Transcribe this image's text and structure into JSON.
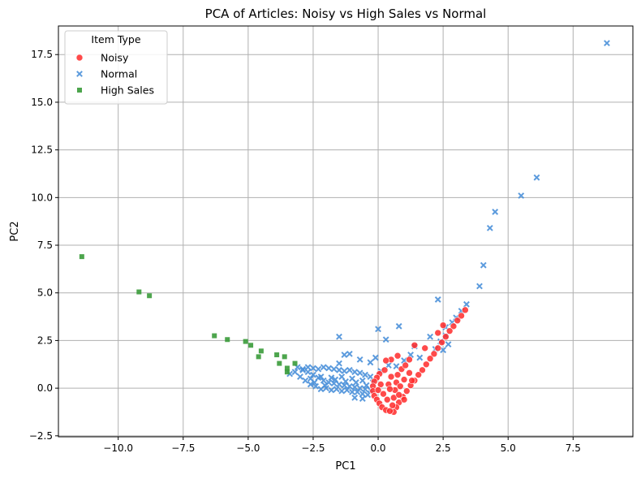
{
  "chart_data": {
    "type": "scatter",
    "title": "PCA of Articles: Noisy vs High Sales vs Normal",
    "xlabel": "PC1",
    "ylabel": "PC2",
    "xlim": [
      -12.3,
      9.8
    ],
    "ylim": [
      -2.55,
      19.0
    ],
    "xticks": [
      -10.0,
      -7.5,
      -5.0,
      -2.5,
      0.0,
      2.5,
      5.0,
      7.5
    ],
    "xtick_labels": [
      "−10.0",
      "−7.5",
      "−5.0",
      "−2.5",
      "0.0",
      "2.5",
      "5.0",
      "7.5"
    ],
    "yticks": [
      -2.5,
      0.0,
      2.5,
      5.0,
      7.5,
      10.0,
      12.5,
      15.0,
      17.5
    ],
    "ytick_labels": [
      "−2.5",
      "0.0",
      "2.5",
      "5.0",
      "7.5",
      "10.0",
      "12.5",
      "15.0",
      "17.5"
    ],
    "grid": true,
    "legend": {
      "title": "Item Type",
      "position": "top-left"
    },
    "series": [
      {
        "name": "Noisy",
        "marker": "circle",
        "color": "#ff2a2a",
        "points": [
          [
            3.35,
            4.1
          ],
          [
            3.2,
            3.8
          ],
          [
            3.05,
            3.55
          ],
          [
            2.9,
            3.25
          ],
          [
            2.75,
            3.0
          ],
          [
            2.6,
            2.7
          ],
          [
            2.45,
            2.4
          ],
          [
            2.3,
            2.1
          ],
          [
            2.15,
            1.8
          ],
          [
            2.0,
            1.55
          ],
          [
            1.85,
            1.25
          ],
          [
            1.7,
            0.95
          ],
          [
            1.55,
            0.7
          ],
          [
            1.4,
            0.4
          ],
          [
            1.25,
            0.15
          ],
          [
            1.1,
            -0.15
          ],
          [
            0.95,
            -0.45
          ],
          [
            0.8,
            -0.75
          ],
          [
            0.7,
            -1.0
          ],
          [
            0.6,
            -1.25
          ],
          [
            2.5,
            3.3
          ],
          [
            2.3,
            2.9
          ],
          [
            1.8,
            2.1
          ],
          [
            1.4,
            2.25
          ],
          [
            1.2,
            1.5
          ],
          [
            0.75,
            1.7
          ],
          [
            0.5,
            1.5
          ],
          [
            0.3,
            1.45
          ],
          [
            0.05,
            0.75
          ],
          [
            -0.05,
            0.55
          ],
          [
            -0.15,
            0.35
          ],
          [
            -0.2,
            0.1
          ],
          [
            -0.2,
            -0.15
          ],
          [
            -0.15,
            -0.4
          ],
          [
            -0.05,
            -0.6
          ],
          [
            0.05,
            -0.8
          ],
          [
            0.15,
            -1.0
          ],
          [
            0.3,
            -1.15
          ],
          [
            0.45,
            -1.2
          ],
          [
            0.55,
            -0.9
          ],
          [
            0.6,
            -0.5
          ],
          [
            0.65,
            -0.1
          ],
          [
            0.7,
            0.3
          ],
          [
            0.75,
            0.7
          ],
          [
            0.9,
            1.0
          ],
          [
            1.05,
            1.2
          ],
          [
            1.2,
            0.8
          ],
          [
            1.3,
            0.4
          ],
          [
            0.4,
            0.2
          ],
          [
            0.2,
            -0.3
          ],
          [
            0.35,
            -0.6
          ],
          [
            0.5,
            0.6
          ],
          [
            0.25,
            0.95
          ],
          [
            0.45,
            -0.05
          ],
          [
            1.0,
            0.45
          ],
          [
            0.85,
            0.1
          ],
          [
            0.1,
            0.2
          ],
          [
            0.0,
            -0.1
          ],
          [
            0.8,
            -0.35
          ],
          [
            1.0,
            -0.6
          ]
        ]
      },
      {
        "name": "Normal",
        "marker": "x",
        "color": "#4a90d9",
        "points": [
          [
            8.8,
            18.1
          ],
          [
            6.1,
            11.05
          ],
          [
            5.5,
            10.1
          ],
          [
            4.5,
            9.25
          ],
          [
            4.3,
            8.4
          ],
          [
            4.05,
            6.45
          ],
          [
            3.9,
            5.35
          ],
          [
            2.3,
            4.65
          ],
          [
            3.4,
            4.4
          ],
          [
            3.2,
            4.05
          ],
          [
            3.0,
            3.7
          ],
          [
            2.85,
            3.45
          ],
          [
            2.6,
            3.2
          ],
          [
            0.8,
            3.25
          ],
          [
            0.0,
            3.1
          ],
          [
            0.3,
            2.55
          ],
          [
            -1.5,
            2.7
          ],
          [
            1.4,
            2.2
          ],
          [
            2.0,
            2.7
          ],
          [
            2.6,
            2.75
          ],
          [
            2.4,
            2.45
          ],
          [
            2.2,
            2.05
          ],
          [
            -1.3,
            1.75
          ],
          [
            -1.1,
            1.8
          ],
          [
            -0.7,
            1.5
          ],
          [
            -0.3,
            1.35
          ],
          [
            -0.1,
            1.6
          ],
          [
            -3.1,
            1.1
          ],
          [
            -2.9,
            1.0
          ],
          [
            -2.7,
            0.85
          ],
          [
            -2.5,
            0.7
          ],
          [
            -2.3,
            0.55
          ],
          [
            -2.1,
            0.4
          ],
          [
            -1.9,
            0.3
          ],
          [
            -1.7,
            0.25
          ],
          [
            -1.5,
            0.2
          ],
          [
            -1.3,
            0.15
          ],
          [
            -1.1,
            0.1
          ],
          [
            -0.9,
            0.05
          ],
          [
            -0.7,
            0.0
          ],
          [
            -0.5,
            -0.05
          ],
          [
            -0.3,
            -0.1
          ],
          [
            -3.0,
            0.6
          ],
          [
            -2.8,
            0.4
          ],
          [
            -2.6,
            0.2
          ],
          [
            -2.4,
            0.1
          ],
          [
            -2.2,
            -0.05
          ],
          [
            -2.0,
            0.0
          ],
          [
            -1.8,
            -0.1
          ],
          [
            -1.6,
            -0.05
          ],
          [
            -1.4,
            -0.15
          ],
          [
            -1.2,
            -0.1
          ],
          [
            -1.0,
            -0.2
          ],
          [
            -0.8,
            -0.2
          ],
          [
            -0.6,
            -0.3
          ],
          [
            -0.4,
            -0.35
          ],
          [
            -2.9,
            0.95
          ],
          [
            -2.7,
            1.1
          ],
          [
            -2.5,
            1.05
          ],
          [
            -2.3,
            1.0
          ],
          [
            -2.1,
            1.1
          ],
          [
            -1.9,
            1.05
          ],
          [
            -1.7,
            1.0
          ],
          [
            -1.5,
            0.95
          ],
          [
            -1.3,
            0.9
          ],
          [
            -1.1,
            0.95
          ],
          [
            -0.9,
            0.85
          ],
          [
            -0.7,
            0.8
          ],
          [
            -0.5,
            0.7
          ],
          [
            -0.3,
            0.6
          ],
          [
            -3.4,
            0.75
          ],
          [
            -3.2,
            0.85
          ],
          [
            -2.6,
            0.5
          ],
          [
            -2.2,
            0.6
          ],
          [
            -1.8,
            0.55
          ],
          [
            -1.4,
            0.6
          ],
          [
            -1.0,
            0.5
          ],
          [
            -0.6,
            0.4
          ],
          [
            -0.2,
            0.3
          ],
          [
            -2.45,
            0.3
          ],
          [
            -2.05,
            0.15
          ],
          [
            -1.65,
            0.45
          ],
          [
            -1.25,
            0.35
          ],
          [
            -0.85,
            0.3
          ],
          [
            -0.45,
            0.15
          ],
          [
            0.1,
            0.9
          ],
          [
            0.4,
            1.2
          ],
          [
            0.7,
            1.15
          ],
          [
            1.0,
            1.45
          ],
          [
            1.6,
            1.6
          ],
          [
            1.25,
            1.75
          ],
          [
            2.7,
            2.3
          ],
          [
            2.5,
            2.0
          ],
          [
            -0.9,
            -0.5
          ],
          [
            -0.6,
            -0.55
          ],
          [
            -1.5,
            1.3
          ]
        ]
      },
      {
        "name": "High Sales",
        "marker": "square",
        "color": "#3a9b3a",
        "points": [
          [
            -11.4,
            6.9
          ],
          [
            -9.2,
            5.05
          ],
          [
            -8.8,
            4.85
          ],
          [
            -6.3,
            2.75
          ],
          [
            -5.8,
            2.55
          ],
          [
            -5.1,
            2.45
          ],
          [
            -4.9,
            2.25
          ],
          [
            -4.5,
            1.95
          ],
          [
            -4.6,
            1.65
          ],
          [
            -3.9,
            1.75
          ],
          [
            -3.6,
            1.65
          ],
          [
            -3.8,
            1.3
          ],
          [
            -3.5,
            1.05
          ],
          [
            -3.2,
            1.3
          ],
          [
            -3.5,
            0.85
          ]
        ]
      }
    ]
  }
}
